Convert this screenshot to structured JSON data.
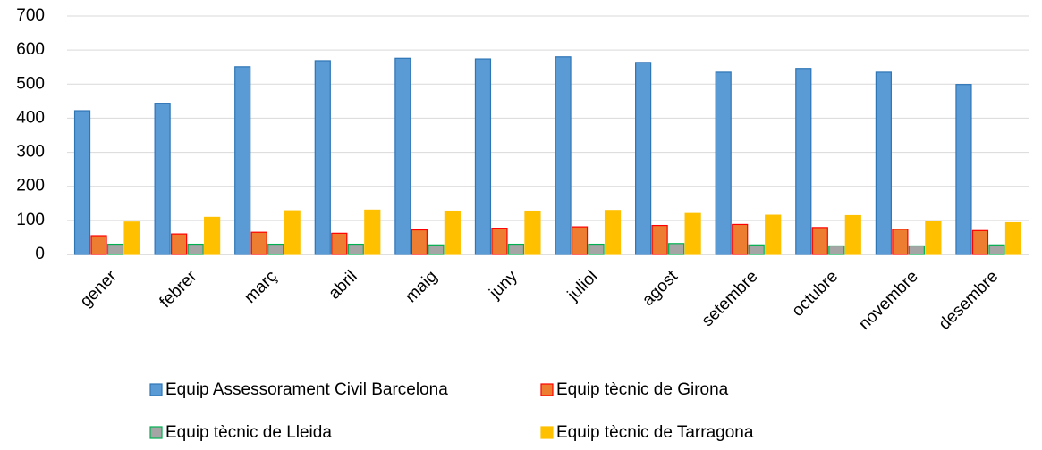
{
  "chart_data": {
    "type": "bar",
    "categories": [
      "gener",
      "febrer",
      "març",
      "abril",
      "maig",
      "juny",
      "juliol",
      "agost",
      "setembre",
      "octubre",
      "novembre",
      "desembre"
    ],
    "series": [
      {
        "name": "Equip Assessorament Civil Barcelona",
        "color": "#5b9bd5",
        "edgecolor": "#2e75b6",
        "values": [
          422,
          444,
          551,
          569,
          576,
          574,
          580,
          564,
          535,
          546,
          535,
          499
        ]
      },
      {
        "name": "Equip tècnic de Girona",
        "color": "#ed7d31",
        "edgecolor": "#ff0000",
        "values": [
          55,
          60,
          65,
          62,
          72,
          77,
          81,
          85,
          88,
          79,
          74,
          70
        ]
      },
      {
        "name": "Equip tècnic de Lleida",
        "color": "#a5a5a5",
        "edgecolor": "#00b050",
        "values": [
          30,
          30,
          30,
          30,
          28,
          30,
          30,
          32,
          28,
          25,
          25,
          28
        ]
      },
      {
        "name": "Equip tècnic de Tarragona",
        "color": "#ffc000",
        "edgecolor": "#ffc000",
        "values": [
          95,
          109,
          128,
          130,
          127,
          127,
          129,
          120,
          115,
          114,
          98,
          93
        ]
      }
    ],
    "ylim": [
      0,
      700
    ],
    "yticks": [
      0,
      100,
      200,
      300,
      400,
      500,
      600,
      700
    ],
    "grid": true,
    "legend": "bottom"
  }
}
